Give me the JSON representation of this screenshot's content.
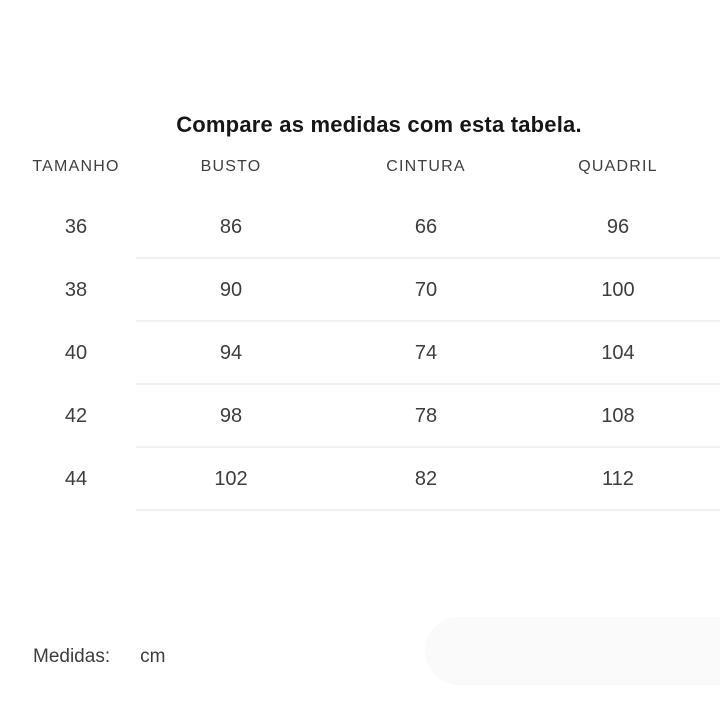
{
  "title": "Compare as medidas com esta tabela.",
  "table": {
    "headers": [
      "TAMANHO",
      "BUSTO",
      "CINTURA",
      "QUADRIL"
    ],
    "rows": [
      [
        "36",
        "86",
        "66",
        "96"
      ],
      [
        "38",
        "90",
        "70",
        "100"
      ],
      [
        "40",
        "94",
        "74",
        "104"
      ],
      [
        "42",
        "98",
        "78",
        "108"
      ],
      [
        "44",
        "102",
        "82",
        "112"
      ]
    ]
  },
  "footer": {
    "label": "Medidas:",
    "unit": "cm"
  },
  "colors": {
    "background": "#ffffff",
    "title_text": "#161616",
    "header_text": "#3f3f3f",
    "body_text": "#3d3d3d",
    "divider": "#f1f1f1",
    "pill": "#fafafa"
  }
}
